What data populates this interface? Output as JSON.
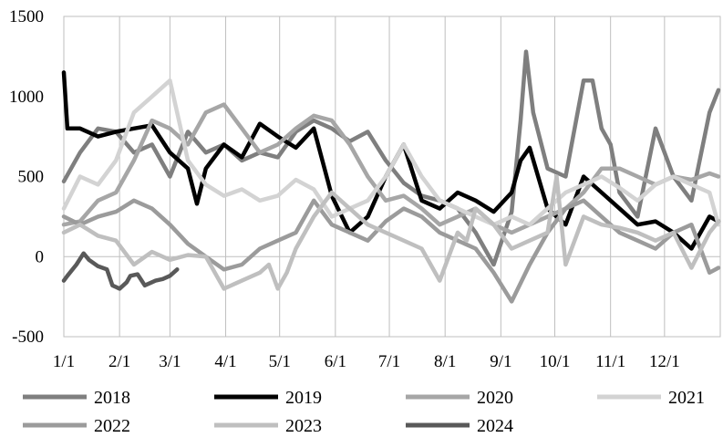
{
  "chart_data": {
    "type": "line",
    "title": "",
    "xlabel": "",
    "ylabel": "",
    "x_ticks": [
      "1/1",
      "2/1",
      "3/1",
      "4/1",
      "5/1",
      "6/1",
      "7/1",
      "8/1",
      "9/1",
      "10/1",
      "11/1",
      "12/1"
    ],
    "y_ticks": [
      "1500",
      "1000",
      "500",
      "0",
      "-500"
    ],
    "ylim": [
      -500,
      1500
    ],
    "xlim": [
      1,
      366
    ],
    "grid": "vertical",
    "legend_position": "bottom",
    "series": [
      {
        "name": "2018",
        "color": "#7f7f7f",
        "x": [
          1,
          10,
          20,
          30,
          40,
          50,
          60,
          70,
          80,
          90,
          100,
          110,
          120,
          130,
          140,
          150,
          160,
          170,
          180,
          190,
          200,
          210,
          220,
          230,
          240,
          250,
          255,
          258,
          262,
          270,
          280,
          290,
          295,
          300,
          305,
          310,
          320,
          330,
          340,
          350,
          360,
          365
        ],
        "y": [
          470,
          650,
          800,
          780,
          650,
          700,
          500,
          780,
          650,
          700,
          600,
          650,
          620,
          780,
          850,
          800,
          720,
          780,
          600,
          460,
          380,
          350,
          300,
          150,
          -50,
          280,
          850,
          1280,
          900,
          550,
          500,
          1100,
          1100,
          800,
          700,
          400,
          250,
          800,
          500,
          350,
          900,
          1040
        ]
      },
      {
        "name": "2019",
        "color": "#000000",
        "x": [
          1,
          3,
          10,
          20,
          30,
          40,
          50,
          60,
          70,
          75,
          80,
          90,
          100,
          110,
          120,
          130,
          140,
          150,
          160,
          170,
          180,
          190,
          200,
          210,
          220,
          230,
          240,
          250,
          255,
          260,
          270,
          280,
          290,
          300,
          310,
          320,
          330,
          340,
          350,
          360,
          365
        ],
        "y": [
          1150,
          800,
          800,
          750,
          780,
          800,
          820,
          650,
          550,
          330,
          550,
          700,
          620,
          830,
          750,
          680,
          800,
          380,
          150,
          250,
          500,
          700,
          350,
          300,
          400,
          350,
          280,
          400,
          600,
          680,
          300,
          200,
          500,
          400,
          300,
          200,
          220,
          150,
          50,
          250,
          220
        ]
      },
      {
        "name": "2020",
        "color": "#a6a6a6",
        "x": [
          1,
          10,
          20,
          30,
          40,
          50,
          60,
          70,
          80,
          90,
          100,
          110,
          120,
          130,
          140,
          150,
          160,
          170,
          180,
          190,
          200,
          210,
          220,
          230,
          240,
          250,
          260,
          270,
          280,
          290,
          300,
          310,
          320,
          330,
          340,
          350,
          360,
          365
        ],
        "y": [
          200,
          220,
          350,
          400,
          600,
          850,
          800,
          700,
          900,
          950,
          800,
          650,
          700,
          800,
          880,
          850,
          700,
          500,
          350,
          380,
          300,
          200,
          250,
          300,
          200,
          150,
          200,
          250,
          300,
          400,
          550,
          550,
          500,
          450,
          500,
          480,
          520,
          500
        ]
      },
      {
        "name": "2021",
        "color": "#d3d3d3",
        "x": [
          1,
          10,
          20,
          30,
          40,
          50,
          60,
          70,
          80,
          90,
          100,
          110,
          120,
          130,
          140,
          150,
          160,
          170,
          180,
          190,
          200,
          210,
          220,
          230,
          240,
          250,
          260,
          270,
          280,
          290,
          300,
          310,
          320,
          330,
          340,
          350,
          360,
          365
        ],
        "y": [
          300,
          500,
          450,
          600,
          900,
          1000,
          1100,
          600,
          450,
          380,
          420,
          350,
          380,
          480,
          420,
          250,
          300,
          350,
          500,
          700,
          500,
          350,
          300,
          250,
          200,
          250,
          200,
          300,
          400,
          450,
          500,
          430,
          350,
          450,
          500,
          450,
          400,
          200
        ]
      },
      {
        "name": "2022",
        "color": "#9b9b9b",
        "x": [
          1,
          10,
          20,
          30,
          40,
          50,
          60,
          70,
          80,
          90,
          100,
          110,
          120,
          130,
          140,
          150,
          160,
          170,
          180,
          190,
          200,
          210,
          220,
          230,
          240,
          250,
          260,
          270,
          280,
          290,
          300,
          310,
          320,
          330,
          340,
          350,
          360,
          365
        ],
        "y": [
          250,
          200,
          250,
          280,
          350,
          300,
          200,
          80,
          0,
          -80,
          -50,
          50,
          100,
          150,
          350,
          200,
          150,
          100,
          220,
          300,
          250,
          150,
          100,
          50,
          -100,
          -280,
          -50,
          150,
          300,
          350,
          250,
          150,
          100,
          50,
          150,
          200,
          -100,
          -70
        ]
      },
      {
        "name": "2023",
        "color": "#bfbfbf",
        "x": [
          1,
          10,
          20,
          30,
          40,
          50,
          60,
          70,
          80,
          90,
          100,
          110,
          115,
          120,
          125,
          130,
          140,
          150,
          160,
          170,
          180,
          190,
          200,
          210,
          220,
          225,
          230,
          240,
          250,
          260,
          270,
          275,
          280,
          290,
          300,
          310,
          320,
          330,
          340,
          350,
          360,
          365
        ],
        "y": [
          150,
          200,
          130,
          100,
          -50,
          30,
          -20,
          10,
          0,
          -200,
          -150,
          -100,
          -50,
          -200,
          -100,
          50,
          250,
          400,
          300,
          200,
          150,
          100,
          50,
          -150,
          150,
          100,
          300,
          200,
          50,
          100,
          150,
          500,
          -50,
          250,
          200,
          180,
          150,
          100,
          150,
          -70,
          150,
          220
        ]
      },
      {
        "name": "2024",
        "color": "#595959",
        "x": [
          1,
          3,
          8,
          12,
          15,
          20,
          25,
          28,
          32,
          36,
          38,
          42,
          46,
          50,
          52,
          56,
          60,
          64
        ],
        "y": [
          -150,
          -120,
          -50,
          20,
          -20,
          -60,
          -80,
          -180,
          -200,
          -160,
          -120,
          -110,
          -180,
          -160,
          -150,
          -140,
          -120,
          -80
        ]
      }
    ]
  }
}
